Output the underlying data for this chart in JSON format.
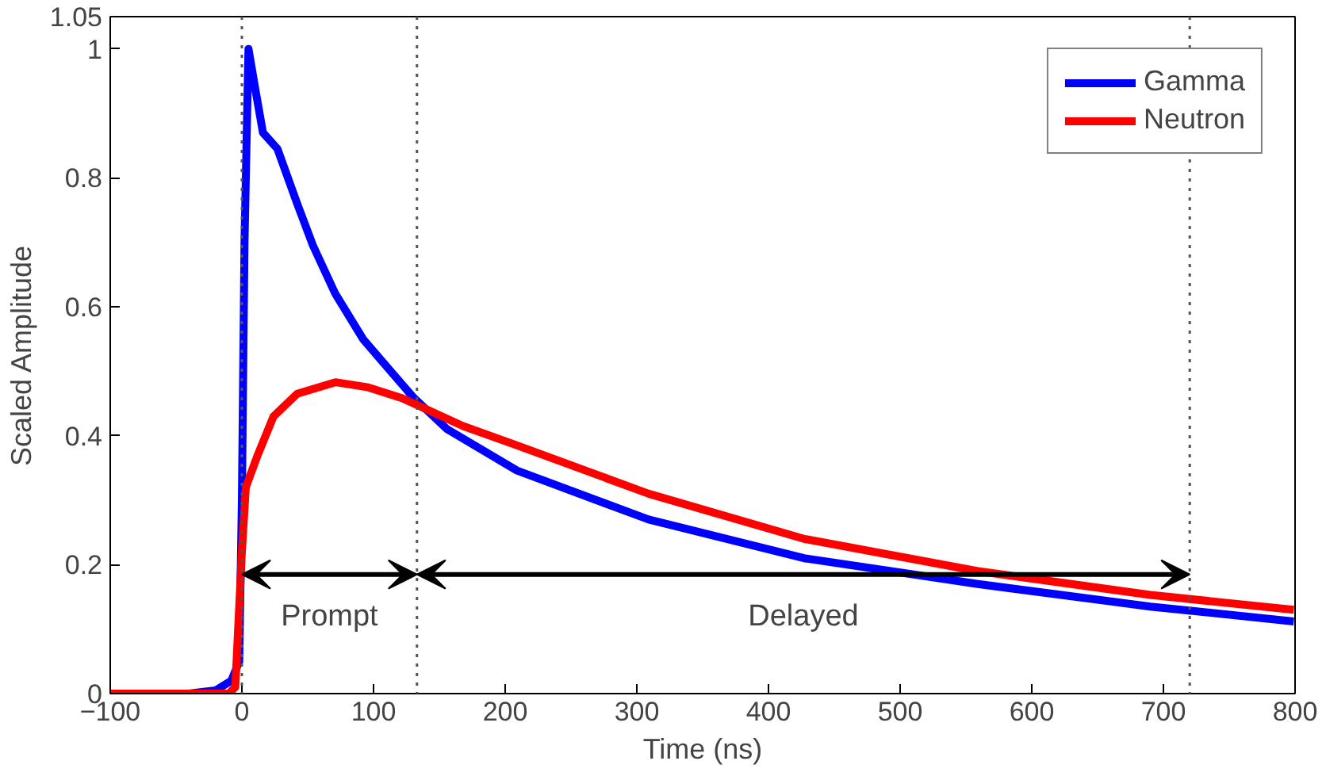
{
  "chart_data": {
    "type": "line",
    "xlabel": "Time (ns)",
    "ylabel": "Scaled Amplitude",
    "xlim": [
      -100,
      800
    ],
    "ylim": [
      0,
      1.05
    ],
    "xticks": [
      -100,
      0,
      100,
      200,
      300,
      400,
      500,
      600,
      700,
      800
    ],
    "yticks": [
      0,
      0.2,
      0.4,
      0.6,
      0.8,
      1,
      1.05
    ],
    "legend": "top right",
    "grid": false,
    "line_style": "solid",
    "marker": "none",
    "series": [
      {
        "name": "Gamma",
        "color": "#0000ff",
        "x": [
          -100,
          -40,
          -20,
          -8,
          -2,
          0,
          2,
          5,
          10,
          16,
          27,
          42,
          54,
          71,
          92,
          113,
          130,
          156,
          209,
          309,
          427,
          559,
          690,
          799
        ],
        "values": [
          0,
          0,
          0.005,
          0.02,
          0.05,
          0.3,
          0.7,
          1.0,
          0.94,
          0.87,
          0.845,
          0.76,
          0.695,
          0.62,
          0.55,
          0.5,
          0.46,
          0.41,
          0.346,
          0.27,
          0.21,
          0.17,
          0.135,
          0.112
        ]
      },
      {
        "name": "Neutron",
        "color": "#ff0000",
        "x": [
          -100,
          -40,
          -10,
          -5,
          0,
          3,
          12,
          24,
          42,
          71,
          96,
          122,
          168,
          209,
          309,
          427,
          559,
          690,
          799
        ],
        "values": [
          0,
          0,
          0,
          0.01,
          0.22,
          0.32,
          0.37,
          0.43,
          0.465,
          0.483,
          0.475,
          0.458,
          0.415,
          0.385,
          0.31,
          0.24,
          0.19,
          0.153,
          0.13
        ]
      }
    ],
    "ref_lines": [
      {
        "axis": "x",
        "value": 0,
        "line_style": "dotted",
        "color": "#555555"
      },
      {
        "axis": "x",
        "value": 133,
        "line_style": "dotted",
        "color": "#555555"
      },
      {
        "axis": "x",
        "value": 720,
        "line_style": "dotted",
        "color": "#555555"
      }
    ],
    "annotations": [
      "Prompt",
      "Delayed"
    ]
  }
}
